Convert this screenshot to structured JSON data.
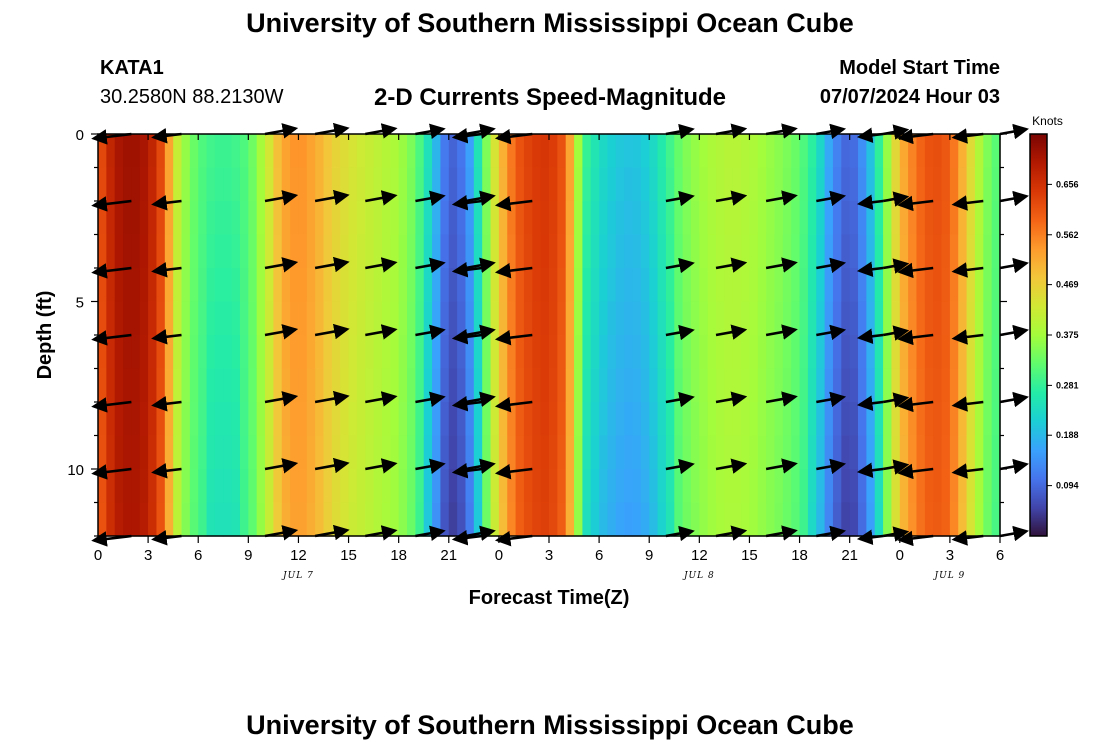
{
  "header": {
    "title": "University of Southern Mississippi Ocean Cube",
    "station": "KATA1",
    "coords": "30.2580N  88.2130W",
    "subtitle": "2-D Currents Speed-Magnitude",
    "model_start_label": "Model Start Time",
    "model_start_value": "07/07/2024 Hour 03"
  },
  "footer": {
    "title": "University of Southern Mississippi Ocean Cube"
  },
  "colors": {
    "colormap": [
      "#30123b",
      "#4145ab",
      "#4675ed",
      "#39a2fc",
      "#1bcfd4",
      "#24eca6",
      "#61fc6c",
      "#a4fc3b",
      "#d1e834",
      "#f3c63a",
      "#fe9b2d",
      "#f36315",
      "#d93806",
      "#b11901",
      "#7a0402"
    ],
    "arrow": "#000000"
  },
  "chart_data": {
    "type": "heatmap",
    "title": "2-D Currents Speed-Magnitude",
    "xlabel": "Forecast Time(Z)",
    "ylabel": "Depth (ft)",
    "x_hours": [
      0,
      54
    ],
    "x_ticks": [
      {
        "h": 0,
        "label": "0"
      },
      {
        "h": 3,
        "label": "3"
      },
      {
        "h": 6,
        "label": "6"
      },
      {
        "h": 9,
        "label": "9"
      },
      {
        "h": 12,
        "label": "12"
      },
      {
        "h": 15,
        "label": "15"
      },
      {
        "h": 18,
        "label": "18"
      },
      {
        "h": 21,
        "label": "21"
      },
      {
        "h": 24,
        "label": "0"
      },
      {
        "h": 27,
        "label": "3"
      },
      {
        "h": 30,
        "label": "6"
      },
      {
        "h": 33,
        "label": "9"
      },
      {
        "h": 36,
        "label": "12"
      },
      {
        "h": 39,
        "label": "15"
      },
      {
        "h": 42,
        "label": "18"
      },
      {
        "h": 45,
        "label": "21"
      },
      {
        "h": 48,
        "label": "0"
      },
      {
        "h": 51,
        "label": "3"
      },
      {
        "h": 54,
        "label": "6"
      }
    ],
    "date_labels": [
      {
        "h": 12,
        "label": "JUL 7"
      },
      {
        "h": 36,
        "label": "JUL 8"
      },
      {
        "h": 51,
        "label": "JUL 9"
      }
    ],
    "depth_range_ft": [
      0,
      12
    ],
    "y_ticks": [
      {
        "v": 0,
        "label": "0"
      },
      {
        "v": 5,
        "label": "5"
      },
      {
        "v": 10,
        "label": "10"
      }
    ],
    "colorbar": {
      "unit": "Knots",
      "range": [
        0.0,
        0.75
      ],
      "ticks": [
        "0.094",
        "0.188",
        "0.281",
        "0.375",
        "0.469",
        "0.562",
        "0.656"
      ]
    },
    "speed_profile_hours": [
      0,
      1,
      2,
      3,
      4,
      4.5,
      5,
      6,
      7,
      8,
      9,
      10,
      11,
      12,
      13,
      14,
      15,
      16,
      17,
      18,
      19,
      20,
      21,
      22,
      22.5,
      23,
      24,
      25,
      26,
      27,
      28,
      28.5,
      29,
      30,
      31,
      32,
      33,
      34,
      35,
      36,
      37,
      38,
      39,
      40,
      41,
      42,
      43,
      44,
      45,
      46,
      47,
      48,
      49,
      50,
      51,
      52,
      53,
      54
    ],
    "speed_profile_knots": [
      0.6,
      0.7,
      0.72,
      0.7,
      0.6,
      0.45,
      0.38,
      0.31,
      0.29,
      0.29,
      0.31,
      0.4,
      0.52,
      0.55,
      0.52,
      0.47,
      0.44,
      0.42,
      0.4,
      0.38,
      0.33,
      0.22,
      0.08,
      0.12,
      0.2,
      0.3,
      0.48,
      0.6,
      0.64,
      0.65,
      0.6,
      0.45,
      0.3,
      0.24,
      0.21,
      0.2,
      0.22,
      0.28,
      0.34,
      0.37,
      0.39,
      0.4,
      0.39,
      0.37,
      0.35,
      0.32,
      0.26,
      0.14,
      0.08,
      0.16,
      0.32,
      0.5,
      0.58,
      0.62,
      0.6,
      0.48,
      0.36,
      0.3
    ],
    "arrow_columns": [
      {
        "h": 2,
        "dir": "left",
        "speed": 0.7
      },
      {
        "h": 5,
        "dir": "left",
        "speed": 0.35
      },
      {
        "h": 10,
        "dir": "right",
        "speed": 0.45
      },
      {
        "h": 13,
        "dir": "right",
        "speed": 0.5
      },
      {
        "h": 16,
        "dir": "right",
        "speed": 0.42
      },
      {
        "h": 19,
        "dir": "right",
        "speed": 0.35
      },
      {
        "h": 22,
        "dir": "right",
        "speed": 0.35
      },
      {
        "h": 23,
        "dir": "left",
        "speed": 0.35
      },
      {
        "h": 26,
        "dir": "left",
        "speed": 0.6
      },
      {
        "h": 34,
        "dir": "right",
        "speed": 0.3
      },
      {
        "h": 37,
        "dir": "right",
        "speed": 0.38
      },
      {
        "h": 40,
        "dir": "right",
        "speed": 0.4
      },
      {
        "h": 43,
        "dir": "right",
        "speed": 0.33
      },
      {
        "h": 47,
        "dir": "right",
        "speed": 0.2
      },
      {
        "h": 47,
        "dir": "left",
        "speed": 0.2
      },
      {
        "h": 50,
        "dir": "left",
        "speed": 0.55
      },
      {
        "h": 53,
        "dir": "left",
        "speed": 0.4
      },
      {
        "h": 54,
        "dir": "right",
        "speed": 0.3
      }
    ],
    "arrow_depths_ft": [
      0,
      2,
      4,
      6,
      8,
      10,
      12
    ]
  }
}
